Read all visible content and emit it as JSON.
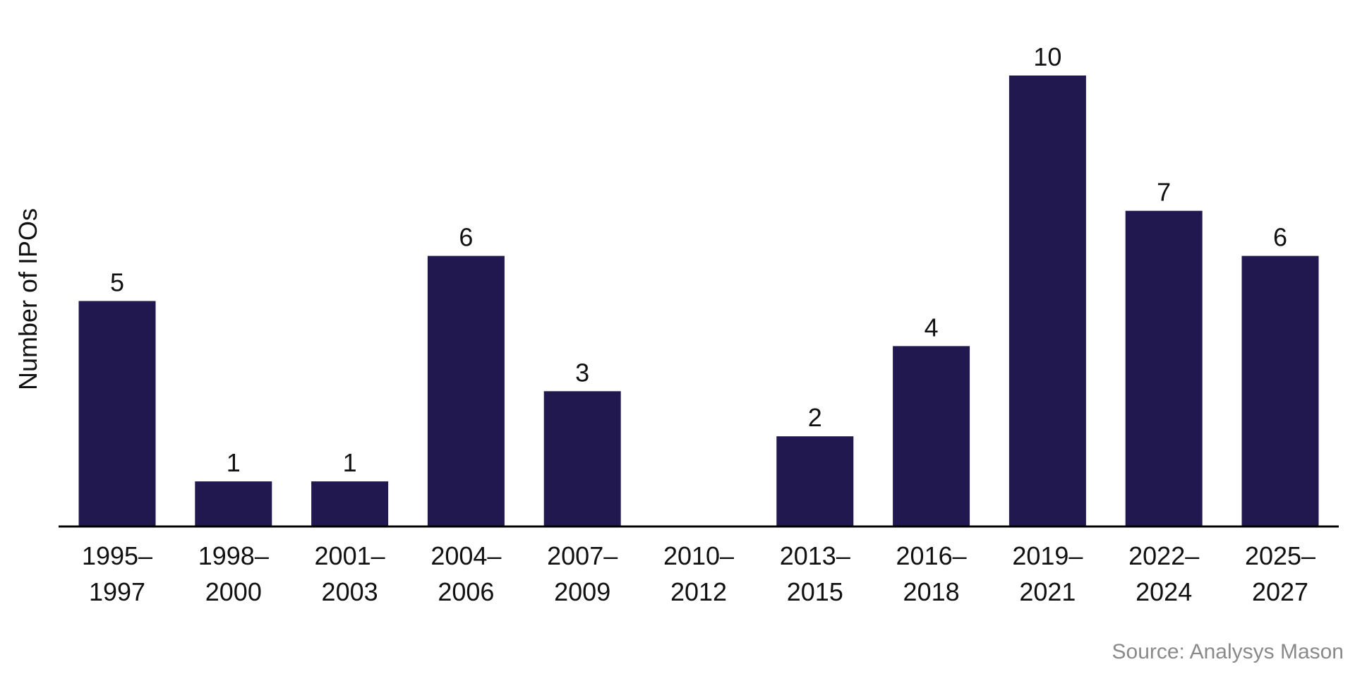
{
  "chart_data": {
    "type": "bar",
    "categories": [
      [
        "1995–",
        "1997"
      ],
      [
        "1998–",
        "2000"
      ],
      [
        "2001–",
        "2003"
      ],
      [
        "2004–",
        "2006"
      ],
      [
        "2007–",
        "2009"
      ],
      [
        "2010–",
        "2012"
      ],
      [
        "2013–",
        "2015"
      ],
      [
        "2016–",
        "2018"
      ],
      [
        "2019–",
        "2021"
      ],
      [
        "2022–",
        "2024"
      ],
      [
        "2025–",
        "2027"
      ]
    ],
    "values": [
      5,
      1,
      1,
      6,
      3,
      0,
      2,
      4,
      10,
      7,
      6
    ],
    "show_data_labels": true,
    "ylabel": "Number of IPOs",
    "ylim": [
      0,
      10
    ],
    "grid": false,
    "bar_color": "#211850",
    "axis_color": "#000000"
  },
  "footer": {
    "source": "Source: Analysys Mason"
  }
}
